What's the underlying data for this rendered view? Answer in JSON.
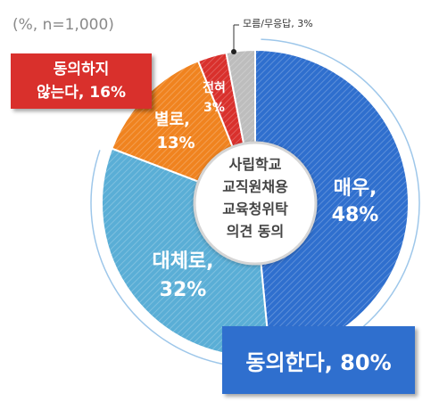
{
  "note": "(%, n=1,000)",
  "colors": {
    "very": "#2f6fce",
    "mostly": "#5aaed6",
    "not_really": "#f0831f",
    "not_at_all": "#d9302c",
    "unknown": "#bdbdbd",
    "agree_box": "#2f6fce",
    "disagree_box": "#d9302c"
  },
  "chart_data": {
    "type": "pie",
    "donut": true,
    "center_label": [
      "사립학교",
      "교직원채용",
      "교육청위탁",
      "의견 동의"
    ],
    "categories": [
      "매우",
      "대체로",
      "별로",
      "전혀",
      "모름/무응답"
    ],
    "values": [
      48,
      32,
      13,
      3,
      3
    ],
    "labels": [
      "매우,",
      "48%",
      "대체로,",
      "32%",
      "별로,",
      "13%",
      "전혀",
      "3%"
    ],
    "callout": "모름/무응답, 3%",
    "groups": [
      {
        "label": "동의한다, 80%",
        "value": 80
      },
      {
        "label_line1": "동의하지",
        "label_line2": "않는다, 16%",
        "value": 16
      }
    ]
  }
}
